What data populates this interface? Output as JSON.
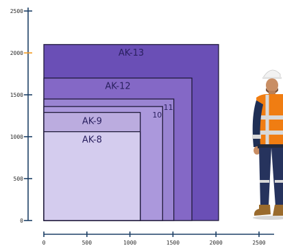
{
  "diagram": {
    "y_ticks": [
      {
        "value": 0,
        "label": "0"
      },
      {
        "value": 500,
        "label": "500"
      },
      {
        "value": 1000,
        "label": "1000"
      },
      {
        "value": 1500,
        "label": "1500"
      },
      {
        "value": 2000,
        "label": "2000"
      },
      {
        "value": 2500,
        "label": "2500"
      }
    ],
    "x_ticks": [
      {
        "value": 0,
        "label": "0"
      },
      {
        "value": 500,
        "label": "500"
      },
      {
        "value": 1000,
        "label": "1000"
      },
      {
        "value": 1500,
        "label": "1500"
      },
      {
        "value": 2000,
        "label": "2000"
      },
      {
        "value": 2500,
        "label": "2500"
      }
    ],
    "x_range": [
      0,
      2500
    ],
    "y_range": [
      0,
      2500
    ],
    "boxes": [
      {
        "label": "AK-13",
        "width": 2030,
        "height": 2100,
        "color": "#6a4fb6"
      },
      {
        "label": "AK-12",
        "width": 1720,
        "height": 1700,
        "color": "#8468c6"
      },
      {
        "label": "11",
        "width": 1510,
        "height": 1450,
        "color": "#9a84d2"
      },
      {
        "label": "10",
        "width": 1380,
        "height": 1360,
        "color": "#ab98dc"
      },
      {
        "label": "AK-9",
        "width": 1120,
        "height": 1290,
        "color": "#bbacdf"
      },
      {
        "label": "AK-8",
        "width": 1120,
        "height": 1060,
        "color": "#d4ccee"
      }
    ],
    "axis_color": "#1c3f66",
    "highlight_color": "#f39a1e"
  }
}
